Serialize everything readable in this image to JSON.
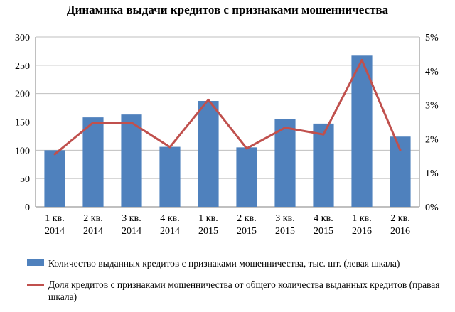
{
  "chart_data": {
    "type": "bar",
    "title": "Динамика выдачи кредитов с признаками мошенничества",
    "categories": [
      [
        "1 кв.",
        "2014"
      ],
      [
        "2 кв.",
        "2014"
      ],
      [
        "3 кв.",
        "2014"
      ],
      [
        "4 кв.",
        "2014"
      ],
      [
        "1 кв.",
        "2015"
      ],
      [
        "2 кв.",
        "2015"
      ],
      [
        "3 кв.",
        "2015"
      ],
      [
        "4 кв.",
        "2015"
      ],
      [
        "1 кв.",
        "2016"
      ],
      [
        "2 кв.",
        "2016"
      ]
    ],
    "series": [
      {
        "name": "Количество выданных кредитов с признаками мошенничества, тыс. шт. (левая шкала)",
        "type": "bar",
        "axis": "left",
        "color": "#4f81bd",
        "values": [
          100,
          158,
          163,
          106,
          187,
          105,
          155,
          147,
          267,
          124
        ]
      },
      {
        "name": "Доля кредитов с признаками мошенничества от общего количества выданных кредитов (правая шкала)",
        "type": "line",
        "axis": "right",
        "color": "#c0504d",
        "values": [
          1.55,
          2.48,
          2.48,
          1.76,
          3.15,
          1.72,
          2.33,
          2.13,
          4.32,
          1.67
        ]
      }
    ],
    "y_left": {
      "ylim": [
        0,
        300
      ],
      "ticks": [
        "0",
        "50",
        "100",
        "150",
        "200",
        "250",
        "300"
      ],
      "tick_values": [
        0,
        50,
        100,
        150,
        200,
        250,
        300
      ]
    },
    "y_right": {
      "ylim": [
        0,
        5
      ],
      "ticks": [
        "0%",
        "1%",
        "2%",
        "3%",
        "4%",
        "5%"
      ],
      "tick_values": [
        0,
        1,
        2,
        3,
        4,
        5
      ]
    },
    "grid": true,
    "legend_placement": "bottom"
  }
}
